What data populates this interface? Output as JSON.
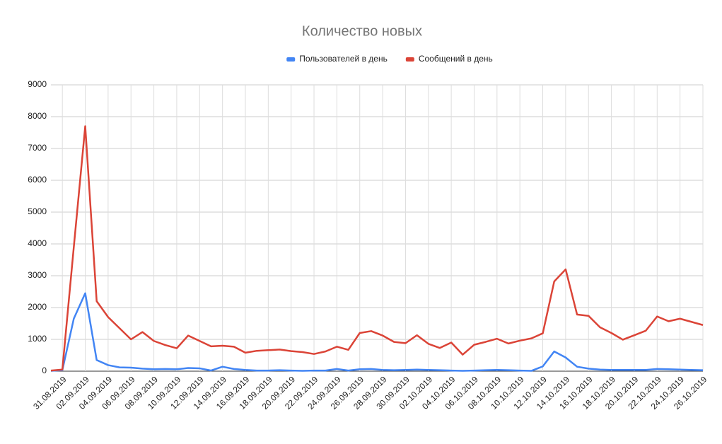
{
  "chart_data": {
    "type": "line",
    "title": "Количество новых",
    "categories": [
      null,
      "31.08.2019",
      null,
      "02.09.2019",
      null,
      "04.09.2019",
      null,
      "06.09.2019",
      null,
      "08.09.2019",
      null,
      "10.09.2019",
      null,
      "12.09.2019",
      null,
      "14.09.2019",
      null,
      "16.09.2019",
      null,
      "18.09.2019",
      null,
      "20.09.2019",
      null,
      "22.09.2019",
      null,
      "24.09.2019",
      null,
      "26.09.2019",
      null,
      "28.09.2019",
      null,
      "30.09.2019",
      null,
      "02.10.2019",
      null,
      "04.10.2019",
      null,
      "06.10.2019",
      null,
      "08.10.2019",
      null,
      "10.10.2019",
      null,
      "12.10.2019",
      null,
      "14.10.2019",
      null,
      "16.10.2019",
      null,
      "18.10.2019",
      null,
      "20.10.2019",
      null,
      "22.10.2019",
      null,
      "24.10.2019",
      null,
      "26.10.2019"
    ],
    "series": [
      {
        "name": "Пользователей в день",
        "color": "#4285f4",
        "values": [
          10,
          30,
          1650,
          2450,
          350,
          190,
          120,
          110,
          80,
          60,
          70,
          60,
          100,
          90,
          20,
          140,
          70,
          40,
          20,
          20,
          30,
          20,
          10,
          20,
          20,
          70,
          20,
          60,
          70,
          40,
          30,
          40,
          50,
          40,
          30,
          20,
          10,
          20,
          30,
          40,
          30,
          20,
          10,
          150,
          620,
          430,
          140,
          80,
          50,
          40,
          40,
          40,
          40,
          70,
          60,
          50,
          40,
          30
        ]
      },
      {
        "name": "Сообщений в день",
        "color": "#db4437",
        "values": [
          20,
          50,
          3900,
          7700,
          2200,
          1700,
          1350,
          1000,
          1230,
          950,
          820,
          720,
          1120,
          950,
          780,
          800,
          770,
          580,
          640,
          660,
          680,
          630,
          600,
          540,
          620,
          770,
          670,
          1200,
          1260,
          1120,
          920,
          880,
          1130,
          860,
          730,
          900,
          520,
          830,
          920,
          1020,
          870,
          960,
          1030,
          1190,
          2820,
          3200,
          1780,
          1740,
          1380,
          1200,
          990,
          1130,
          1270,
          1720,
          1570,
          1650,
          1550,
          1450
        ]
      }
    ],
    "ylim": [
      0,
      9000
    ],
    "yticks": [
      0,
      1000,
      2000,
      3000,
      4000,
      5000,
      6000,
      7000,
      8000,
      9000
    ],
    "grid": true,
    "legend": "top"
  }
}
